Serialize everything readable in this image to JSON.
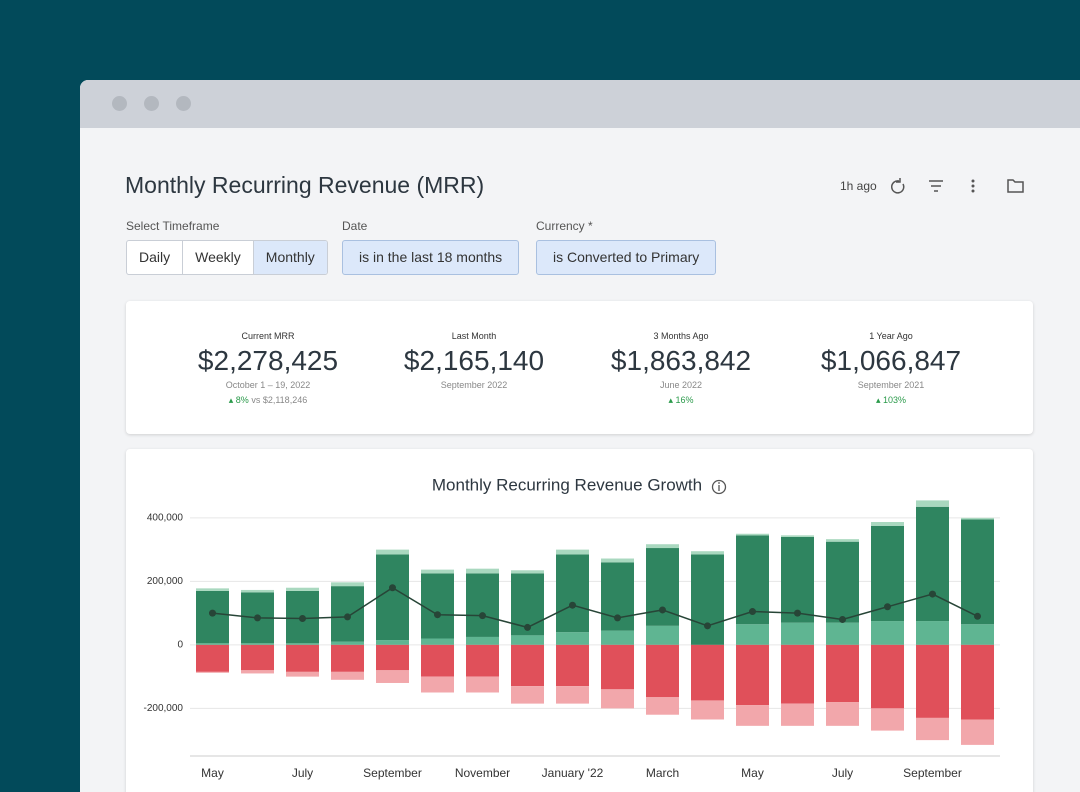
{
  "header": {
    "title": "Monthly Recurring Revenue (MRR)",
    "updated": "1h ago"
  },
  "filters": [
    {
      "label": "Select Timeframe",
      "options": [
        "Daily",
        "Weekly",
        "Monthly"
      ],
      "selected": "Monthly"
    },
    {
      "label": "Date",
      "value": "is in the last 18 months"
    },
    {
      "label": "Currency *",
      "value": "is Converted to Primary"
    }
  ],
  "kpis": [
    {
      "label": "Current MRR",
      "value": "$2,278,425",
      "period": "October 1 – 19, 2022",
      "change": "8%",
      "compare": "vs $2,118,246"
    },
    {
      "label": "Last Month",
      "value": "$2,165,140",
      "period": "September 2022"
    },
    {
      "label": "3 Months Ago",
      "value": "$1,863,842",
      "period": "June 2022",
      "change": "16%"
    },
    {
      "label": "1 Year Ago",
      "value": "$1,066,847",
      "period": "September 2021",
      "change": "103%"
    }
  ],
  "chart_data": {
    "type": "bar",
    "stacked": true,
    "title": "Monthly Recurring Revenue Growth",
    "categories": [
      "May",
      null,
      "July",
      null,
      "September",
      null,
      "November",
      null,
      "January '22",
      null,
      "March",
      null,
      "May",
      null,
      "July",
      null,
      "September",
      null
    ],
    "series": [
      {
        "color": "#5fb592",
        "values": [
          5000,
          5000,
          5000,
          10000,
          15000,
          20000,
          25000,
          30000,
          40000,
          45000,
          60000,
          0,
          65000,
          70000,
          70000,
          75000,
          75000,
          65000
        ]
      },
      {
        "color": "#2f8560",
        "values": [
          165000,
          160000,
          165000,
          175000,
          270000,
          205000,
          200000,
          195000,
          245000,
          215000,
          245000,
          285000,
          280000,
          270000,
          255000,
          300000,
          360000,
          330000
        ]
      },
      {
        "color": "#a9d8bf",
        "values": [
          8000,
          8000,
          10000,
          12000,
          15000,
          12000,
          15000,
          10000,
          15000,
          12000,
          12000,
          10000,
          5000,
          5000,
          8000,
          12000,
          20000,
          5000
        ]
      },
      {
        "color": "#e0505a",
        "values": [
          -85000,
          -80000,
          -85000,
          -85000,
          -80000,
          -100000,
          -100000,
          -130000,
          -130000,
          -140000,
          -165000,
          -175000,
          -190000,
          -185000,
          -180000,
          -200000,
          -230000,
          -235000
        ]
      },
      {
        "color": "#f2a7ab",
        "values": [
          -3000,
          -10000,
          -15000,
          -25000,
          -40000,
          -50000,
          -50000,
          -55000,
          -55000,
          -60000,
          -55000,
          -60000,
          -65000,
          -70000,
          -75000,
          -70000,
          -70000,
          -80000
        ]
      },
      {
        "type": "line",
        "color": "#274537",
        "values": [
          100000,
          85000,
          83000,
          88000,
          180000,
          95000,
          92000,
          55000,
          125000,
          85000,
          110000,
          60000,
          105000,
          100000,
          80000,
          120000,
          160000,
          90000
        ]
      }
    ],
    "ylim": [
      -350000,
      450000
    ],
    "yticks": [
      {
        "value": -200000,
        "label": "-200,000"
      },
      0,
      {
        "value": 200000,
        "label": "200,000"
      },
      {
        "value": 400000,
        "label": "400,000"
      }
    ],
    "grid": true
  }
}
